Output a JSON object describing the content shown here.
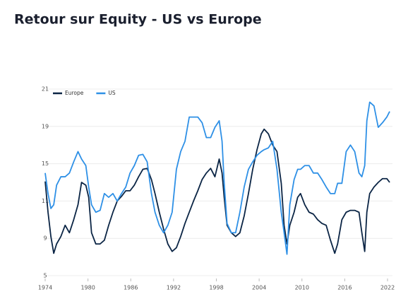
{
  "chart_data": {
    "type": "line",
    "title": "Retour sur Equity - US vs Europe",
    "x": [
      1974.0,
      1974.4,
      1974.8,
      1975.2,
      1975.6,
      1976.2,
      1976.8,
      1977.4,
      1978.0,
      1978.6,
      1979.1,
      1979.7,
      1980.1,
      1980.5,
      1981.1,
      1981.7,
      1982.3,
      1982.9,
      1983.5,
      1984.1,
      1984.7,
      1985.3,
      1985.9,
      1986.5,
      1987.1,
      1987.7,
      1988.3,
      1988.9,
      1989.4,
      1990.0,
      1990.6,
      1991.2,
      1991.8,
      1992.4,
      1993.0,
      1993.6,
      1994.2,
      1994.8,
      1995.4,
      1996.0,
      1996.6,
      1997.2,
      1997.8,
      1998.4,
      1998.8,
      1999.1,
      1999.5,
      2000.1,
      2000.7,
      2001.3,
      2001.9,
      2002.5,
      2003.1,
      2003.7,
      2004.3,
      2004.7,
      2005.3,
      2005.9,
      2006.5,
      2007.1,
      2007.5,
      2007.9,
      2008.3,
      2008.9,
      2009.4,
      2009.8,
      2010.4,
      2011.0,
      2011.6,
      2012.2,
      2012.8,
      2013.4,
      2014.0,
      2014.6,
      2015.0,
      2015.6,
      2016.2,
      2016.8,
      2017.4,
      2018.0,
      2018.4,
      2018.8,
      2019.1,
      2019.5,
      2020.1,
      2020.7,
      2021.3,
      2021.9,
      2022.3
    ],
    "series": [
      {
        "name": "Europe",
        "color": "#0b2545",
        "values": [
          13.1,
          10.4,
          9.1,
          7.4,
          8.4,
          9.1,
          9.7,
          9.3,
          10.0,
          10.8,
          13.0,
          12.7,
          11.4,
          9.3,
          8.4,
          8.4,
          8.8,
          9.7,
          10.4,
          11.0,
          11.5,
          12.1,
          12.1,
          12.7,
          13.6,
          14.4,
          14.5,
          13.3,
          11.8,
          10.4,
          9.5,
          8.4,
          7.6,
          8.0,
          9.1,
          9.8,
          10.4,
          11.0,
          12.1,
          13.3,
          14.0,
          14.5,
          13.6,
          15.5,
          14.0,
          11.4,
          9.7,
          9.3,
          9.1,
          9.3,
          10.2,
          11.8,
          14.4,
          16.5,
          18.2,
          18.7,
          18.2,
          17.0,
          16.3,
          12.9,
          9.7,
          8.4,
          9.7,
          10.4,
          11.4,
          11.8,
          10.8,
          10.4,
          10.3,
          10.0,
          9.8,
          9.7,
          8.8,
          7.4,
          8.4,
          10.0,
          10.4,
          10.5,
          10.5,
          10.4,
          9.3,
          7.6,
          10.4,
          11.8,
          12.5,
          13.0,
          13.4,
          13.4,
          13.0
        ]
      },
      {
        "name": "US",
        "color": "#2e90e6",
        "values": [
          14.0,
          11.8,
          10.6,
          10.8,
          12.7,
          13.6,
          13.6,
          14.0,
          15.2,
          16.3,
          15.5,
          14.8,
          12.5,
          10.8,
          10.4,
          10.5,
          11.8,
          11.4,
          11.8,
          11.0,
          11.8,
          12.5,
          14.0,
          14.8,
          15.9,
          16.0,
          15.2,
          11.8,
          10.4,
          9.7,
          9.3,
          9.7,
          10.4,
          14.4,
          16.3,
          17.4,
          19.5,
          19.5,
          19.5,
          19.2,
          17.8,
          17.8,
          18.9,
          19.3,
          17.4,
          12.9,
          9.8,
          9.3,
          9.3,
          10.4,
          12.5,
          14.4,
          15.2,
          15.9,
          16.3,
          16.5,
          16.7,
          17.4,
          14.4,
          10.4,
          9.3,
          7.3,
          10.8,
          13.3,
          14.4,
          14.4,
          14.8,
          14.8,
          14.0,
          14.0,
          13.3,
          12.5,
          11.8,
          11.8,
          12.9,
          12.9,
          16.3,
          17.0,
          16.3,
          14.0,
          13.6,
          14.8,
          19.3,
          20.3,
          20.1,
          18.9,
          19.2,
          19.5,
          19.8
        ]
      }
    ],
    "ylim": [
      5,
      21
    ],
    "yticks": [
      5,
      9,
      11,
      15,
      19,
      21
    ],
    "xlim": [
      1974,
      2022.3
    ],
    "xticks": [
      1974,
      1980,
      1986,
      1992,
      1998,
      2004,
      2010,
      2016,
      2022
    ],
    "grid": true,
    "legend": "top-left"
  }
}
